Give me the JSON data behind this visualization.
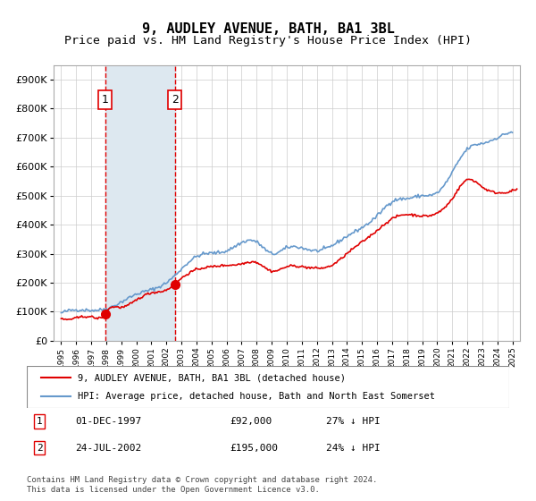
{
  "title": "9, AUDLEY AVENUE, BATH, BA1 3BL",
  "subtitle": "Price paid vs. HM Land Registry's House Price Index (HPI)",
  "sale1_date": "1997-12-01",
  "sale1_price": 92000,
  "sale1_label": "1",
  "sale1_note": "01-DEC-1997    £92,000    27% ↓ HPI",
  "sale2_date": "2002-07-24",
  "sale2_price": 195000,
  "sale2_label": "2",
  "sale2_note": "24-JUL-2002    £195,000    24% ↓ HPI",
  "legend_line1": "9, AUDLEY AVENUE, BATH, BA1 3BL (detached house)",
  "legend_line2": "HPI: Average price, detached house, Bath and North East Somerset",
  "footer": "Contains HM Land Registry data © Crown copyright and database right 2024.\nThis data is licensed under the Open Government Licence v3.0.",
  "sale_line_color": "#e00000",
  "hpi_line_color": "#6699cc",
  "shaded_color": "#dde8f0",
  "ylim": [
    0,
    950000
  ],
  "yticks": [
    0,
    100000,
    200000,
    300000,
    400000,
    500000,
    600000,
    700000,
    800000,
    900000
  ],
  "ytick_labels": [
    "£0",
    "£100K",
    "£200K",
    "£300K",
    "£400K",
    "£500K",
    "£600K",
    "£700K",
    "£800K",
    "£900K"
  ]
}
